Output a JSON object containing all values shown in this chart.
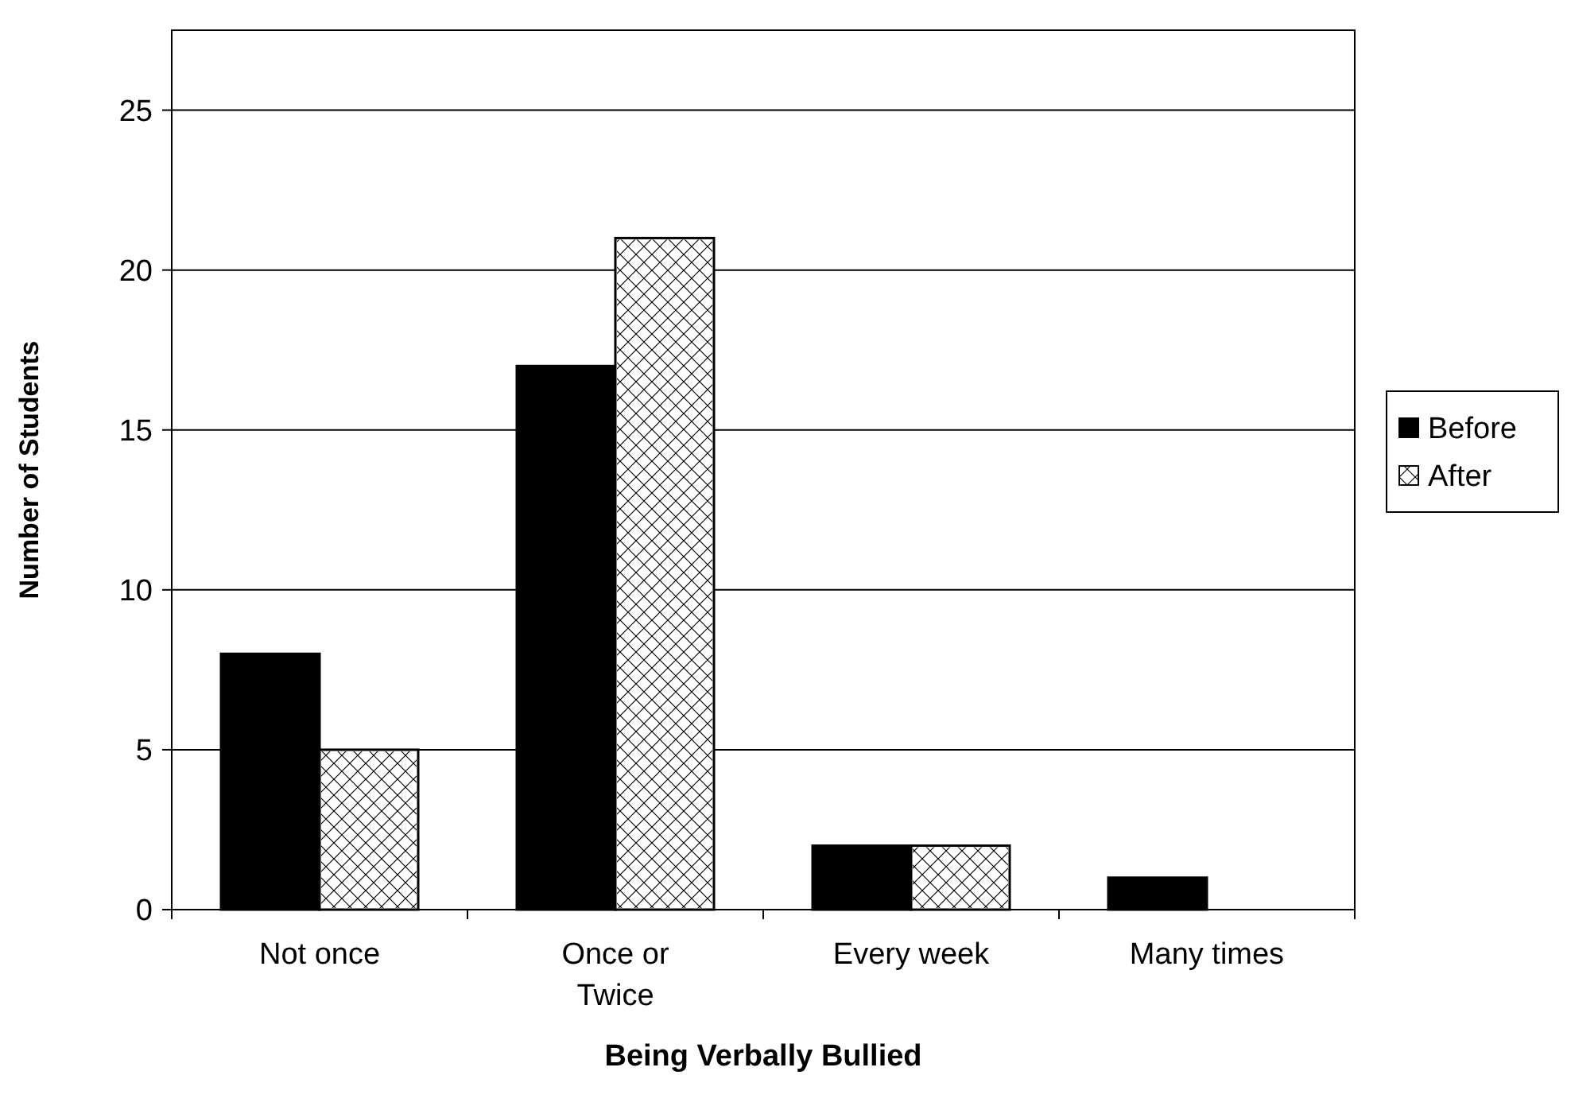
{
  "chart_data": {
    "type": "bar",
    "xlabel": "Being Verbally Bullied",
    "ylabel": "Number of Students",
    "categories": [
      "Not once",
      "Once or Twice",
      "Every week",
      "Many times"
    ],
    "series": [
      {
        "name": "Before",
        "color": "#000000",
        "values": [
          8,
          17,
          2,
          1
        ]
      },
      {
        "name": "After",
        "color": "#ffffff",
        "values": [
          5,
          21,
          2,
          0
        ]
      }
    ],
    "ylim": [
      0,
      27.5
    ],
    "yticks": [
      0,
      5,
      10,
      15,
      20,
      25
    ],
    "grid": "y",
    "legend": "right"
  }
}
